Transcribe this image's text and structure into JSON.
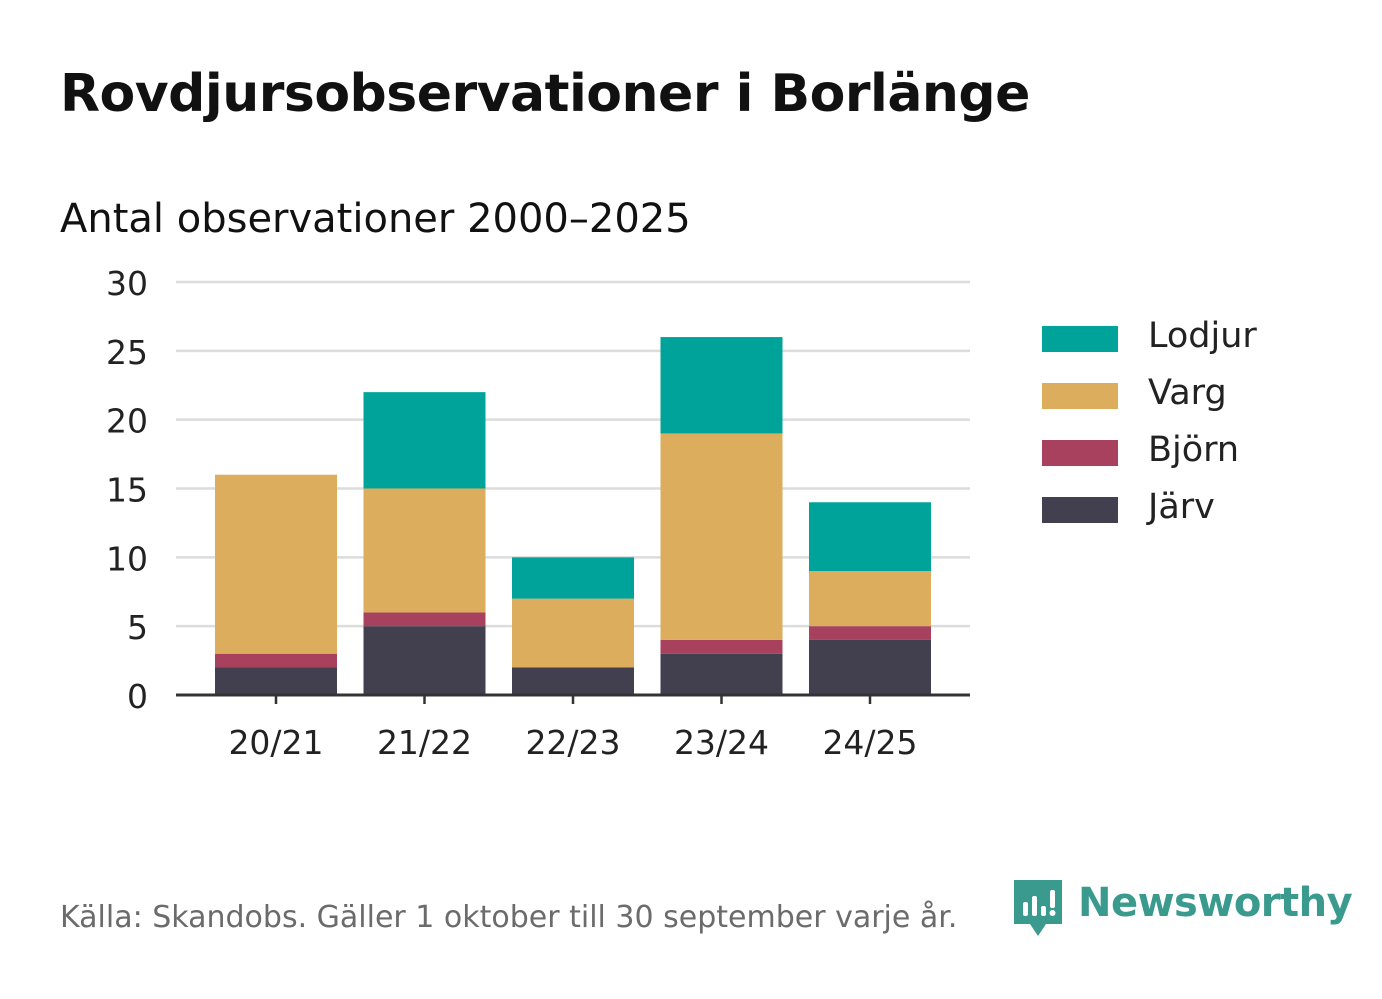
{
  "header": {
    "title": "Rovdjursobservationer i Borlänge",
    "subtitle": "Antal observationer 2000–2025"
  },
  "chart_data": {
    "type": "bar",
    "stacked": true,
    "categories": [
      "20/21",
      "21/22",
      "22/23",
      "23/24",
      "24/25"
    ],
    "series": [
      {
        "name": "Järv",
        "color": "#42404f",
        "values": [
          2,
          5,
          2,
          3,
          4
        ]
      },
      {
        "name": "Björn",
        "color": "#a8415e",
        "values": [
          1,
          1,
          0,
          1,
          1
        ]
      },
      {
        "name": "Varg",
        "color": "#dbad5c",
        "values": [
          13,
          9,
          5,
          15,
          4
        ]
      },
      {
        "name": "Lodjur",
        "color": "#00a39a",
        "values": [
          0,
          7,
          3,
          7,
          5
        ]
      }
    ],
    "ylim": [
      0,
      30
    ],
    "yticks": [
      0,
      5,
      10,
      15,
      20,
      25,
      30
    ],
    "grid": true,
    "legend_position": "right",
    "legend_order": [
      "Lodjur",
      "Varg",
      "Björn",
      "Järv"
    ]
  },
  "footer": {
    "source": "Källa: Skandobs. Gäller 1 oktober till 30 september varje år.",
    "brand": "Newsworthy",
    "brand_color": "#3a9a8e"
  }
}
